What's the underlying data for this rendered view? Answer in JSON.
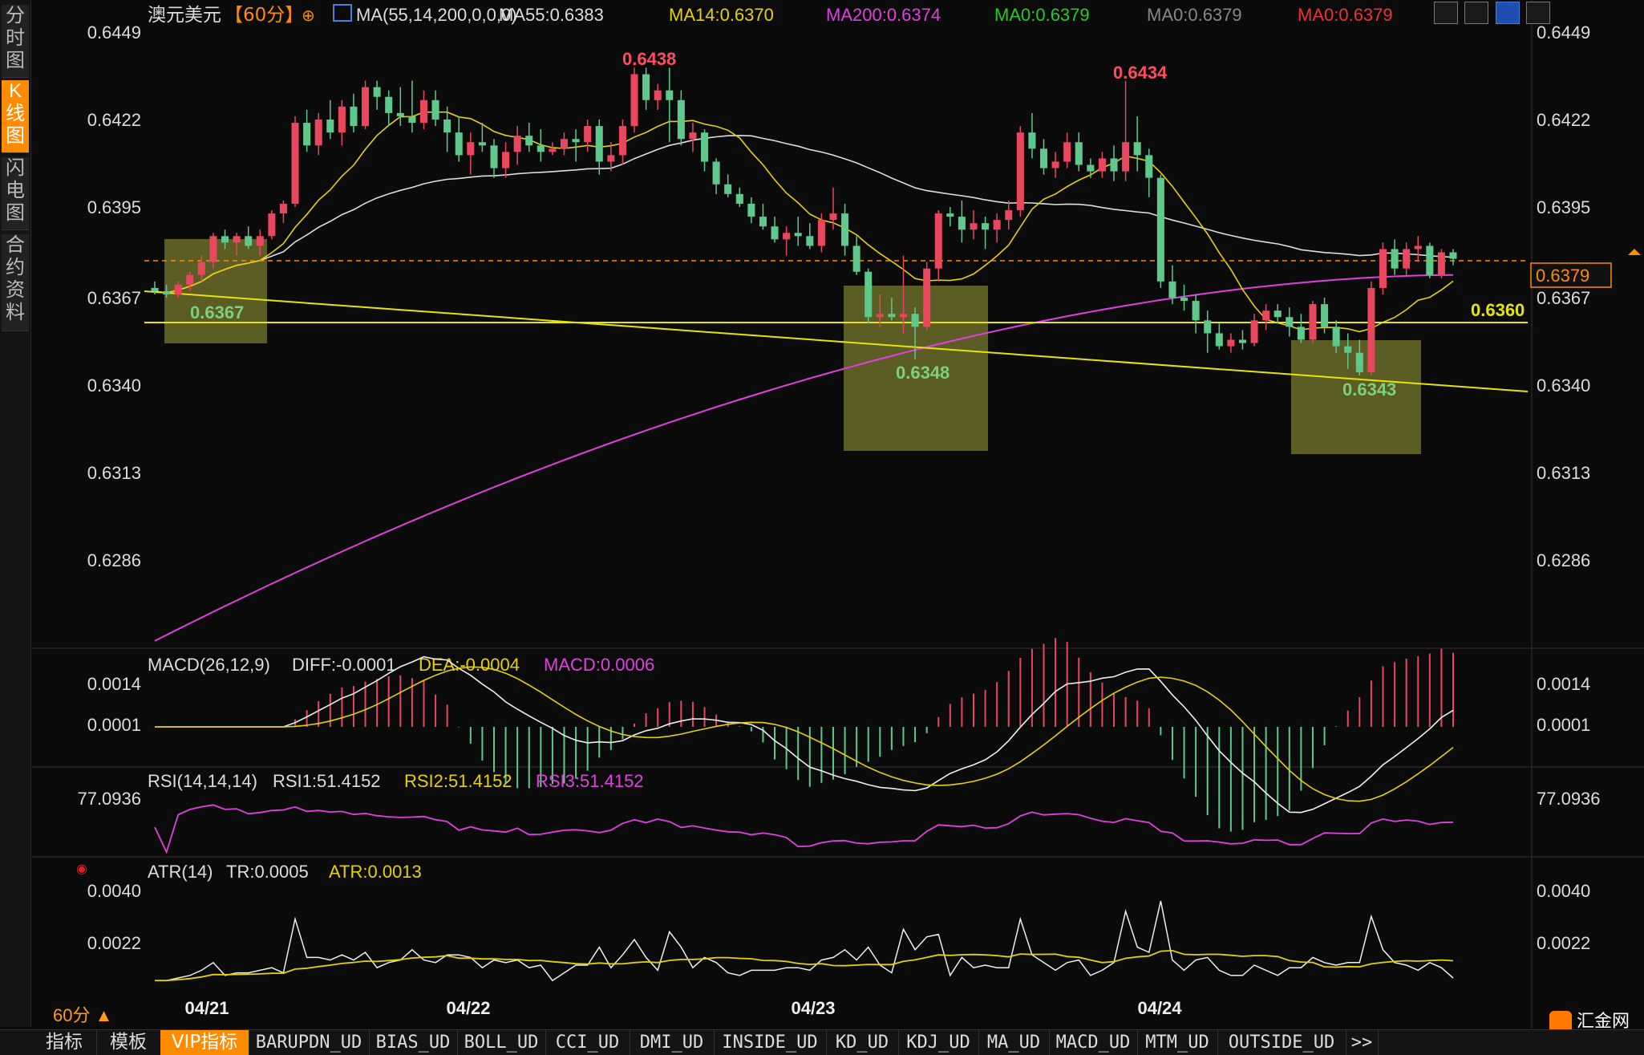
{
  "sidebar": {
    "tabs": [
      {
        "label": "分时图",
        "active": false
      },
      {
        "label": "K线图",
        "active": true
      },
      {
        "label": "闪电图",
        "active": false
      },
      {
        "label": "合约资料",
        "active": false
      }
    ]
  },
  "header": {
    "symbol": "澳元美元",
    "period": "【60分】",
    "indicators": [
      {
        "text": "MA(55,14,200,0,0,0)",
        "color": "#dddddd"
      },
      {
        "text": "MA55:0.6383",
        "color": "#dddddd"
      },
      {
        "text": "MA14:0.6370",
        "color": "#e6d200"
      },
      {
        "text": "MA200:0.6374",
        "color": "#e040e0"
      },
      {
        "text": "MA0:0.6379",
        "color": "#22cc22"
      },
      {
        "text": "MA0:0.6379",
        "color": "#888888"
      },
      {
        "text": "MA0:0.6379",
        "color": "#ee3333"
      }
    ]
  },
  "price_axis": {
    "ticks": [
      "0.6449",
      "0.6422",
      "0.6395",
      "0.6367",
      "0.6340",
      "0.6313",
      "0.6286"
    ]
  },
  "current_price": "0.6379",
  "support_label": "0.6360",
  "annotations": {
    "high1": "0.6438",
    "high2": "0.6434",
    "low1": "0.6367",
    "low2": "0.6348",
    "low3": "0.6343"
  },
  "macd_panel": {
    "title": "MACD(26,12,9)",
    "diff": "DIFF:-0.0001",
    "dea": "DEA:-0.0004",
    "macd": "MACD:0.0006",
    "ticks": [
      "0.0014",
      "0.0001"
    ]
  },
  "rsi_panel": {
    "title": "RSI(14,14,14)",
    "rsi1": "RSI1:51.4152",
    "rsi2": "RSI2:51.4152",
    "rsi3": "RSI3:51.4152",
    "ticks": [
      "77.0936"
    ]
  },
  "atr_panel": {
    "title": "ATR(14)",
    "tr": "TR:0.0005",
    "atr": "ATR:0.0013",
    "ticks": [
      "0.0040",
      "0.0022"
    ]
  },
  "period_label": "60分 ▲",
  "date_labels": [
    "04/21",
    "04/22",
    "04/23",
    "04/24"
  ],
  "bottom_tabs": [
    "指标",
    "模板",
    "VIP指标",
    "BARUPDN_UD",
    "BIAS_UD",
    "BOLL_UD",
    "CCI_UD",
    "DMI_UD",
    "INSIDE_UD",
    "KD_UD",
    "KDJ_UD",
    "MA_UD",
    "MACD_UD",
    "MTM_UD",
    "OUTSIDE_UD",
    ">>"
  ],
  "logo": "汇金网",
  "chart_data": {
    "type": "candlestick",
    "title": "澳元美元 【60分】",
    "ylim": [
      0.626,
      0.646
    ],
    "x": [
      "04/21",
      "04/22",
      "04/23",
      "04/24"
    ],
    "series": [
      {
        "name": "MA55",
        "value": 0.6383
      },
      {
        "name": "MA14",
        "value": 0.637
      },
      {
        "name": "MA200",
        "value": 0.6374
      }
    ],
    "candles_ohlc": [
      [
        0.637,
        0.6372,
        0.6368,
        0.6369
      ],
      [
        0.6369,
        0.6371,
        0.6367,
        0.6368
      ],
      [
        0.6368,
        0.6372,
        0.6367,
        0.6371
      ],
      [
        0.6371,
        0.6375,
        0.6369,
        0.6374
      ],
      [
        0.6374,
        0.638,
        0.6372,
        0.6378
      ],
      [
        0.6378,
        0.6387,
        0.6376,
        0.6386
      ],
      [
        0.6386,
        0.6388,
        0.6382,
        0.6384
      ],
      [
        0.6384,
        0.6387,
        0.638,
        0.6386
      ],
      [
        0.6386,
        0.6389,
        0.6382,
        0.6383
      ],
      [
        0.6383,
        0.6388,
        0.638,
        0.6386
      ],
      [
        0.6386,
        0.6394,
        0.6385,
        0.6393
      ],
      [
        0.6393,
        0.6397,
        0.639,
        0.6396
      ],
      [
        0.6396,
        0.6423,
        0.6395,
        0.6421
      ],
      [
        0.6421,
        0.6425,
        0.6412,
        0.6414
      ],
      [
        0.6414,
        0.6424,
        0.6411,
        0.6422
      ],
      [
        0.6422,
        0.6428,
        0.6416,
        0.6418
      ],
      [
        0.6418,
        0.6428,
        0.6414,
        0.6426
      ],
      [
        0.6426,
        0.643,
        0.6418,
        0.642
      ],
      [
        0.642,
        0.6434,
        0.6419,
        0.6432
      ],
      [
        0.6432,
        0.6434,
        0.6425,
        0.6429
      ],
      [
        0.6429,
        0.6431,
        0.642,
        0.6424
      ],
      [
        0.6424,
        0.6432,
        0.642,
        0.6423
      ],
      [
        0.6423,
        0.6434,
        0.6418,
        0.6421
      ],
      [
        0.6421,
        0.6431,
        0.6419,
        0.6428
      ],
      [
        0.6428,
        0.6431,
        0.642,
        0.6422
      ],
      [
        0.6422,
        0.6426,
        0.6412,
        0.6418
      ],
      [
        0.6418,
        0.6423,
        0.6409,
        0.6411
      ],
      [
        0.6411,
        0.6418,
        0.6405,
        0.6415
      ],
      [
        0.6415,
        0.6421,
        0.6412,
        0.6414
      ],
      [
        0.6414,
        0.6416,
        0.6404,
        0.6407
      ],
      [
        0.6407,
        0.6415,
        0.6404,
        0.6412
      ],
      [
        0.6412,
        0.642,
        0.6408,
        0.6417
      ],
      [
        0.6417,
        0.6421,
        0.6412,
        0.6414
      ],
      [
        0.6414,
        0.6419,
        0.6409,
        0.6412
      ],
      [
        0.6412,
        0.6415,
        0.6411,
        0.6413
      ],
      [
        0.6413,
        0.6418,
        0.6411,
        0.6416
      ],
      [
        0.6416,
        0.6419,
        0.6409,
        0.6415
      ],
      [
        0.6415,
        0.6422,
        0.6412,
        0.642
      ],
      [
        0.642,
        0.6422,
        0.6405,
        0.6409
      ],
      [
        0.6409,
        0.6415,
        0.6406,
        0.6411
      ],
      [
        0.6411,
        0.6422,
        0.6408,
        0.642
      ],
      [
        0.642,
        0.6438,
        0.6418,
        0.6436
      ],
      [
        0.6436,
        0.6438,
        0.6425,
        0.6428
      ],
      [
        0.6428,
        0.6433,
        0.6425,
        0.6431
      ],
      [
        0.6431,
        0.6438,
        0.6415,
        0.6428
      ],
      [
        0.6428,
        0.6431,
        0.6414,
        0.6416
      ],
      [
        0.6416,
        0.6421,
        0.6412,
        0.6418
      ],
      [
        0.6418,
        0.6419,
        0.6406,
        0.6409
      ],
      [
        0.6409,
        0.641,
        0.6399,
        0.6402
      ],
      [
        0.6402,
        0.6405,
        0.6398,
        0.6399
      ],
      [
        0.6399,
        0.6401,
        0.6395,
        0.6396
      ],
      [
        0.6396,
        0.6398,
        0.639,
        0.6392
      ],
      [
        0.6392,
        0.6396,
        0.6388,
        0.6389
      ],
      [
        0.6389,
        0.6392,
        0.6384,
        0.6385
      ],
      [
        0.6385,
        0.6389,
        0.638,
        0.6387
      ],
      [
        0.6387,
        0.6392,
        0.6383,
        0.6386
      ],
      [
        0.6386,
        0.639,
        0.6382,
        0.6383
      ],
      [
        0.6383,
        0.6393,
        0.6381,
        0.6391
      ],
      [
        0.6391,
        0.6401,
        0.6388,
        0.6393
      ],
      [
        0.6393,
        0.6396,
        0.638,
        0.6383
      ],
      [
        0.6383,
        0.6386,
        0.6374,
        0.6375
      ],
      [
        0.6375,
        0.6376,
        0.6359,
        0.6361
      ],
      [
        0.6361,
        0.6368,
        0.6358,
        0.6362
      ],
      [
        0.6362,
        0.6367,
        0.636,
        0.6361
      ],
      [
        0.6361,
        0.638,
        0.6356,
        0.6362
      ],
      [
        0.6362,
        0.6364,
        0.6348,
        0.6358
      ],
      [
        0.6358,
        0.6378,
        0.6357,
        0.6376
      ],
      [
        0.6376,
        0.6394,
        0.6372,
        0.6393
      ],
      [
        0.6393,
        0.6395,
        0.6389,
        0.6392
      ],
      [
        0.6392,
        0.6397,
        0.6384,
        0.6388
      ],
      [
        0.6388,
        0.6394,
        0.6385,
        0.639
      ],
      [
        0.639,
        0.6392,
        0.6382,
        0.6388
      ],
      [
        0.6388,
        0.6393,
        0.6384,
        0.6391
      ],
      [
        0.6391,
        0.6397,
        0.6388,
        0.6394
      ],
      [
        0.6394,
        0.642,
        0.6392,
        0.6418
      ],
      [
        0.6418,
        0.6424,
        0.641,
        0.6413
      ],
      [
        0.6413,
        0.6416,
        0.6405,
        0.6407
      ],
      [
        0.6407,
        0.6412,
        0.6404,
        0.6409
      ],
      [
        0.6409,
        0.6418,
        0.6407,
        0.6415
      ],
      [
        0.6415,
        0.6418,
        0.6406,
        0.6408
      ],
      [
        0.6408,
        0.641,
        0.6404,
        0.6406
      ],
      [
        0.6406,
        0.6412,
        0.6404,
        0.641
      ],
      [
        0.641,
        0.6414,
        0.6403,
        0.6406
      ],
      [
        0.6406,
        0.6434,
        0.6403,
        0.6415
      ],
      [
        0.6415,
        0.6423,
        0.6406,
        0.6411
      ],
      [
        0.6411,
        0.6413,
        0.6398,
        0.6404
      ],
      [
        0.6404,
        0.6405,
        0.637,
        0.6372
      ],
      [
        0.6372,
        0.6377,
        0.6365,
        0.6367
      ],
      [
        0.6367,
        0.6371,
        0.6363,
        0.6366
      ],
      [
        0.6366,
        0.6368,
        0.6356,
        0.636
      ],
      [
        0.636,
        0.6363,
        0.635,
        0.6356
      ],
      [
        0.6356,
        0.6359,
        0.6351,
        0.6352
      ],
      [
        0.6352,
        0.6356,
        0.635,
        0.6354
      ],
      [
        0.6354,
        0.6357,
        0.6351,
        0.6353
      ],
      [
        0.6353,
        0.6362,
        0.6352,
        0.636
      ],
      [
        0.636,
        0.6365,
        0.6357,
        0.6363
      ],
      [
        0.6363,
        0.6365,
        0.6359,
        0.6361
      ],
      [
        0.6361,
        0.6364,
        0.6355,
        0.6358
      ],
      [
        0.6358,
        0.6362,
        0.6353,
        0.6354
      ],
      [
        0.6354,
        0.6366,
        0.6353,
        0.6365
      ],
      [
        0.6365,
        0.6367,
        0.6356,
        0.6358
      ],
      [
        0.6358,
        0.636,
        0.635,
        0.6352
      ],
      [
        0.6352,
        0.6356,
        0.6345,
        0.635
      ],
      [
        0.635,
        0.6354,
        0.6343,
        0.6344
      ],
      [
        0.6344,
        0.6372,
        0.6343,
        0.637
      ],
      [
        0.637,
        0.6384,
        0.6368,
        0.6382
      ],
      [
        0.6382,
        0.6385,
        0.6374,
        0.6376
      ],
      [
        0.6376,
        0.6384,
        0.6374,
        0.6382
      ],
      [
        0.6382,
        0.6386,
        0.6378,
        0.6383
      ],
      [
        0.6383,
        0.6384,
        0.6373,
        0.6374
      ],
      [
        0.6374,
        0.6382,
        0.6373,
        0.6381
      ],
      [
        0.6381,
        0.6382,
        0.6377,
        0.6379
      ]
    ]
  }
}
